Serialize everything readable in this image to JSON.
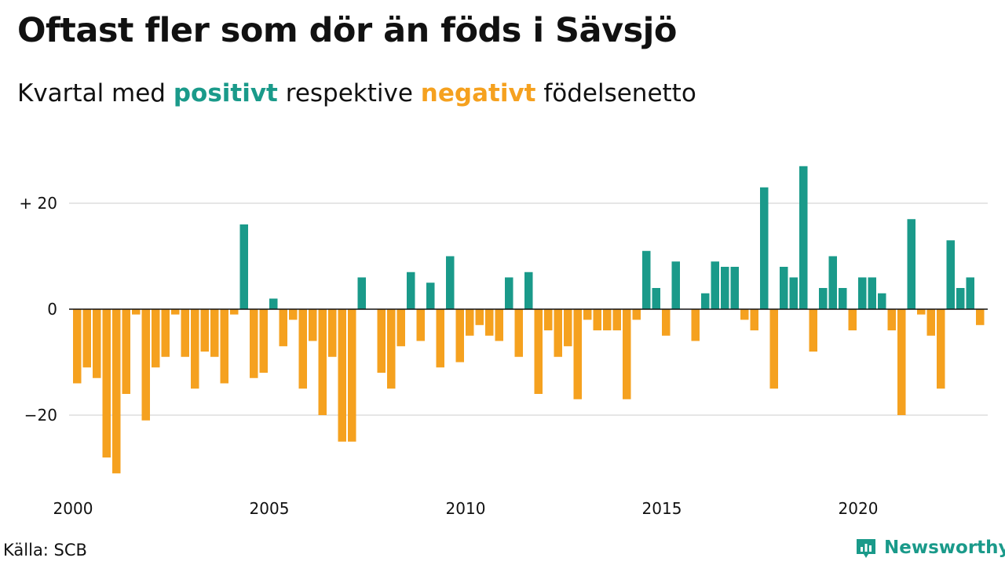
{
  "title": "Oftast fler som dör än föds i Sävsjö",
  "subtitle": {
    "prefix": "Kvartal med",
    "positive": "positivt",
    "middle": "respektive",
    "negative": "negativt",
    "suffix": "födelsenetto"
  },
  "source": "Källa: SCB",
  "brand": "Newsworthy",
  "colors": {
    "positive": "#1a9a8a",
    "negative": "#f5a11f",
    "grid": "#dddddd",
    "zero": "#111111"
  },
  "chart_data": {
    "type": "bar",
    "x_start": "2000 Q1",
    "x_ticks": [
      "2000",
      "2005",
      "2010",
      "2015",
      "2020"
    ],
    "y_ticks": [
      20,
      0,
      -20
    ],
    "y_tick_labels": [
      "+ 20",
      "0",
      "−20"
    ],
    "ylim": [
      -33,
      30
    ],
    "grid": true,
    "values": [
      -14,
      -11,
      -13,
      -28,
      -31,
      -16,
      -1,
      -21,
      -11,
      -9,
      -1,
      -9,
      -15,
      -8,
      -9,
      -14,
      -1,
      16,
      -13,
      -12,
      2,
      -7,
      -2,
      -15,
      -6,
      -20,
      -9,
      -25,
      -25,
      6,
      0,
      -12,
      -15,
      -7,
      7,
      -6,
      5,
      -11,
      10,
      -10,
      -5,
      -3,
      -5,
      -6,
      6,
      -9,
      7,
      -16,
      -4,
      -9,
      -7,
      -17,
      -2,
      -4,
      -4,
      -4,
      -17,
      -2,
      11,
      4,
      -5,
      9,
      0,
      -6,
      3,
      9,
      8,
      8,
      -2,
      -4,
      23,
      -15,
      8,
      6,
      27,
      -8,
      4,
      10,
      4,
      -4,
      6,
      6,
      3,
      -4,
      -20,
      17,
      -1,
      -5,
      -15,
      13,
      4,
      6,
      -3
    ]
  }
}
